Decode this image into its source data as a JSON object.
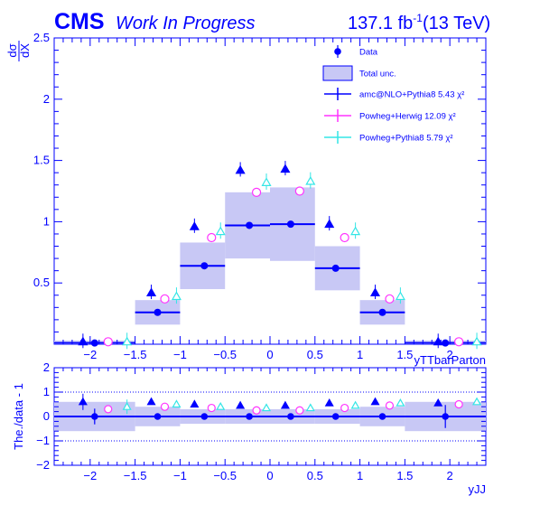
{
  "header": {
    "experiment": "CMS",
    "status": "Work In Progress",
    "lumi": "137.1 fb",
    "lumi_sup": "-1",
    "energy": "(13 TeV)"
  },
  "colors": {
    "axis": "#0000ff",
    "band": "#c8c8f5",
    "amc": "#0000ff",
    "herwig": "#ff33ff",
    "pythia": "#33e6e6"
  },
  "legend": [
    {
      "label": "Data",
      "chi2": "",
      "marker": "data-point"
    },
    {
      "label": "Total unc.",
      "chi2": "",
      "marker": "band"
    },
    {
      "label": "amc@NLO+Pythia8 5.43",
      "chi2": "χ²",
      "marker": "amc-triangle"
    },
    {
      "label": "Powheg+Herwig 12.09",
      "chi2": "χ²",
      "marker": "herwig-circle"
    },
    {
      "label": "Powheg+Pythia8 5.79",
      "chi2": "χ²",
      "marker": "pythia-triangle"
    }
  ],
  "chart_data": [
    {
      "type": "scatter",
      "panel": "main",
      "ylabel": "dσ/dX",
      "xlabel": "yTTbarParton",
      "xlim": [
        -2.4,
        2.4
      ],
      "ylim": [
        0,
        2.5
      ],
      "yticks": [
        0.5,
        1,
        1.5,
        2,
        2.5
      ],
      "yticklabels": [
        "0.5",
        "1",
        "1.5",
        "2",
        "2.5"
      ],
      "xticks": [
        -2,
        -1.5,
        -1,
        -0.5,
        0,
        0.5,
        1,
        1.5,
        2
      ],
      "xticklabels": [
        "−2",
        "−1.5",
        "−1",
        "−0.5",
        "0",
        "0.5",
        "1",
        "1.5",
        "2"
      ],
      "bins": [
        [
          -2.4,
          -1.5
        ],
        [
          -1.5,
          -1.0
        ],
        [
          -1.0,
          -0.5
        ],
        [
          -0.5,
          0.0
        ],
        [
          0.0,
          0.5
        ],
        [
          0.5,
          1.0
        ],
        [
          1.0,
          1.5
        ],
        [
          1.5,
          2.4
        ]
      ],
      "series": [
        {
          "name": "Data",
          "x": [
            -1.95,
            -1.25,
            -0.73,
            -0.23,
            0.23,
            0.73,
            1.25,
            1.95
          ],
          "values": [
            0.01,
            0.26,
            0.64,
            0.97,
            0.98,
            0.62,
            0.26,
            0.01
          ],
          "err_low": [
            0.02,
            0.1,
            0.19,
            0.27,
            0.3,
            0.18,
            0.1,
            0.02
          ],
          "err_high": [
            0.02,
            0.1,
            0.19,
            0.27,
            0.3,
            0.18,
            0.1,
            0.02
          ]
        },
        {
          "name": "amc@NLO+Pythia8",
          "x": [
            -2.08,
            -1.32,
            -0.84,
            -0.33,
            0.17,
            0.66,
            1.17,
            1.87
          ],
          "values": [
            0.02,
            0.42,
            0.96,
            1.42,
            1.43,
            0.98,
            0.42,
            0.02
          ]
        },
        {
          "name": "Powheg+Herwig",
          "x": [
            -1.8,
            -1.17,
            -0.65,
            -0.15,
            0.33,
            0.83,
            1.33,
            2.1
          ],
          "values": [
            0.02,
            0.37,
            0.87,
            1.24,
            1.25,
            0.87,
            0.37,
            0.02
          ]
        },
        {
          "name": "Powheg+Pythia8",
          "x": [
            -1.59,
            -1.04,
            -0.55,
            -0.04,
            0.45,
            0.95,
            1.45,
            2.3
          ],
          "values": [
            0.02,
            0.39,
            0.92,
            1.32,
            1.33,
            0.92,
            0.39,
            0.02
          ]
        }
      ]
    },
    {
      "type": "scatter",
      "panel": "ratio",
      "ylabel": "The./data - 1",
      "xlabel": "yJJ",
      "xlim": [
        -2.4,
        2.4
      ],
      "ylim": [
        -2,
        2
      ],
      "yticks": [
        -2,
        -1,
        0,
        1,
        2
      ],
      "yticklabels": [
        "−2",
        "−1",
        "0",
        "1",
        "2"
      ],
      "xticks": [
        -2,
        -1.5,
        -1,
        -0.5,
        0,
        0.5,
        1,
        1.5,
        2
      ],
      "xticklabels": [
        "−2",
        "−1.5",
        "−1",
        "−0.5",
        "0",
        "0.5",
        "1",
        "1.5",
        "2"
      ],
      "grid_y": [
        -1,
        1
      ],
      "band_half": [
        0.6,
        0.4,
        0.3,
        0.3,
        0.3,
        0.3,
        0.4,
        0.6
      ],
      "series": [
        {
          "name": "Data",
          "x": [
            -1.95,
            -1.25,
            -0.73,
            -0.23,
            0.23,
            0.73,
            1.25,
            1.95
          ],
          "values": [
            0,
            0,
            0,
            0,
            0,
            0,
            0,
            0
          ],
          "err": [
            0.1,
            0,
            0,
            0,
            0,
            0,
            0,
            0.25
          ]
        },
        {
          "name": "amc@NLO+Pythia8",
          "x": [
            -2.08,
            -1.32,
            -0.84,
            -0.33,
            0.17,
            0.66,
            1.17,
            1.87
          ],
          "values": [
            0.6,
            0.6,
            0.5,
            0.45,
            0.45,
            0.55,
            0.6,
            0.55
          ]
        },
        {
          "name": "Powheg+Herwig",
          "x": [
            -1.8,
            -1.17,
            -0.65,
            -0.15,
            0.33,
            0.83,
            1.33,
            2.1
          ],
          "values": [
            0.3,
            0.4,
            0.35,
            0.25,
            0.25,
            0.35,
            0.45,
            0.5
          ]
        },
        {
          "name": "Powheg+Pythia8",
          "x": [
            -1.59,
            -1.04,
            -0.55,
            -0.04,
            0.45,
            0.95,
            1.45,
            2.3
          ],
          "values": [
            0.4,
            0.5,
            0.4,
            0.35,
            0.35,
            0.45,
            0.55,
            0.6
          ]
        }
      ]
    }
  ]
}
